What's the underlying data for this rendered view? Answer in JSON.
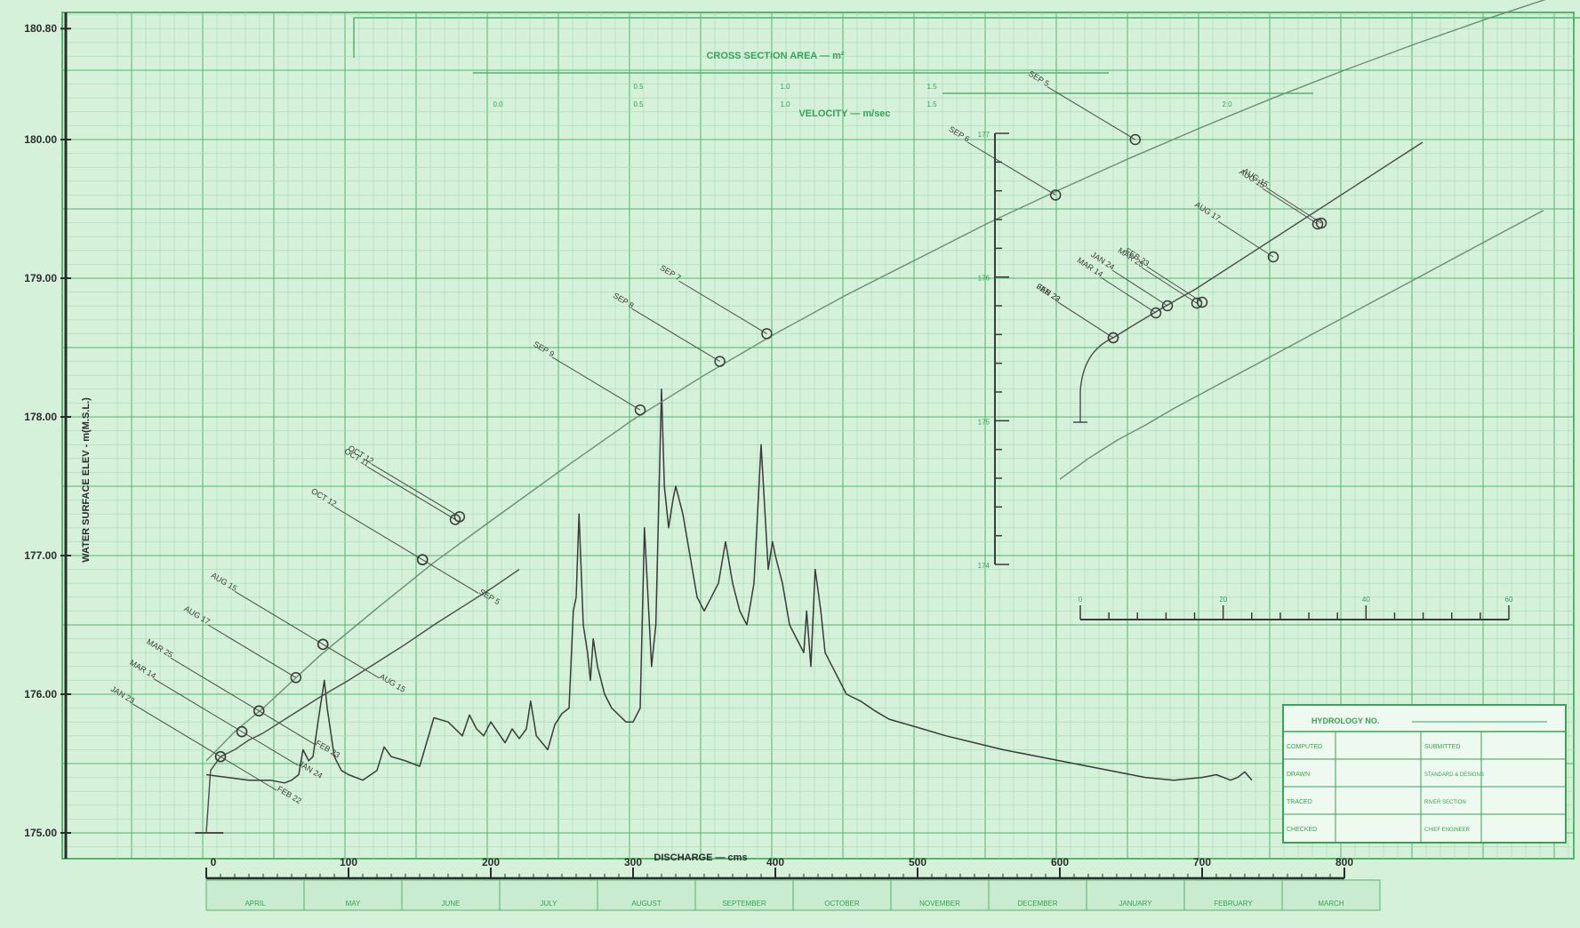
{
  "chart_data": {
    "type": "line",
    "ylabel": "WATER SURFACE ELEV - m(M.S.L.)",
    "xlabel": "DISCHARGE — cms",
    "top_axis_labels": {
      "area": "CROSS SECTION AREA — m²",
      "velocity": "VELOCITY — m/sec"
    },
    "ylim": [
      175.0,
      180.8
    ],
    "xlim": [
      0,
      800
    ],
    "y_ticks": [
      "175.00",
      "176.00",
      "177.00",
      "178.00",
      "179.00",
      "180.00",
      "180.80"
    ],
    "x_ticks": [
      "0",
      "100",
      "200",
      "300",
      "400",
      "500",
      "600",
      "700",
      "800"
    ],
    "months": [
      "APRIL",
      "MAY",
      "JUNE",
      "JULY",
      "AUGUST",
      "SEPTEMBER",
      "OCTOBER",
      "NOVEMBER",
      "DECEMBER",
      "JANUARY",
      "FEBRUARY",
      "MARCH"
    ],
    "series": [
      {
        "role": "hydrograph",
        "x": [
          0,
          15,
          30,
          45,
          55,
          60,
          65,
          68,
          72,
          75,
          80,
          83,
          85,
          90,
          95,
          100,
          110,
          120,
          125,
          130,
          140,
          145,
          150,
          160,
          170,
          175,
          180,
          185,
          190,
          195,
          200,
          210,
          215,
          220,
          225,
          228,
          232,
          240,
          245,
          250,
          255,
          258,
          260,
          262,
          265,
          268,
          270,
          272,
          275,
          280,
          285,
          290,
          295,
          300,
          305,
          308,
          310,
          313,
          316,
          320,
          322,
          325,
          328,
          330,
          335,
          340,
          345,
          350,
          355,
          360,
          365,
          370,
          375,
          380,
          385,
          390,
          395,
          398,
          400,
          405,
          410,
          415,
          420,
          422,
          425,
          428,
          432,
          435,
          440,
          450,
          460,
          470,
          480,
          500,
          520,
          540,
          560,
          580,
          600,
          620,
          640,
          660,
          680,
          700,
          710,
          720,
          725,
          730,
          735
        ],
        "y": [
          175.42,
          175.4,
          175.38,
          175.38,
          175.36,
          175.38,
          175.42,
          175.6,
          175.52,
          175.55,
          175.9,
          176.1,
          175.9,
          175.55,
          175.45,
          175.42,
          175.38,
          175.45,
          175.62,
          175.55,
          175.52,
          175.5,
          175.48,
          175.83,
          175.8,
          175.75,
          175.7,
          175.85,
          175.75,
          175.7,
          175.8,
          175.65,
          175.75,
          175.68,
          175.75,
          175.95,
          175.7,
          175.6,
          175.78,
          175.86,
          175.9,
          176.6,
          176.7,
          177.3,
          176.5,
          176.3,
          176.1,
          176.4,
          176.2,
          176.0,
          175.9,
          175.85,
          175.8,
          175.8,
          175.9,
          177.2,
          176.8,
          176.2,
          176.5,
          178.2,
          177.5,
          177.2,
          177.4,
          177.5,
          177.3,
          177.0,
          176.7,
          176.6,
          176.7,
          176.8,
          177.1,
          176.8,
          176.6,
          176.5,
          176.8,
          177.8,
          176.9,
          177.1,
          177.0,
          176.8,
          176.5,
          176.4,
          176.3,
          176.6,
          176.2,
          176.9,
          176.6,
          176.3,
          176.2,
          176.0,
          175.95,
          175.88,
          175.82,
          175.76,
          175.7,
          175.65,
          175.6,
          175.56,
          175.52,
          175.48,
          175.44,
          175.4,
          175.38,
          175.4,
          175.42,
          175.38,
          175.4,
          175.44,
          175.38
        ]
      },
      {
        "role": "rating-curve",
        "x": [
          0,
          20,
          40,
          80,
          120,
          160,
          200,
          250,
          300,
          350,
          400,
          450,
          500,
          550,
          600,
          650,
          700,
          750,
          800,
          850,
          900,
          950,
          1000,
          1040
        ],
        "y": [
          175.52,
          175.73,
          175.9,
          176.28,
          176.62,
          176.95,
          177.25,
          177.62,
          177.98,
          178.3,
          178.6,
          178.88,
          179.14,
          179.4,
          179.64,
          179.87,
          180.09,
          180.3,
          180.5,
          180.69,
          180.87,
          181.04,
          181.2,
          181.32
        ]
      },
      {
        "role": "area-curve",
        "x": [
          0,
          3,
          10,
          20,
          30,
          40,
          60,
          80,
          100,
          120,
          140,
          160,
          180,
          200,
          220
        ],
        "y": [
          175.0,
          175.45,
          175.55,
          175.6,
          175.67,
          175.72,
          175.85,
          175.98,
          176.1,
          176.23,
          176.36,
          176.5,
          176.63,
          176.76,
          176.9
        ]
      },
      {
        "role": "velocity-curve",
        "x": [
          600,
          620,
          640,
          660,
          680,
          700,
          720,
          740,
          760,
          780,
          800,
          820,
          840,
          860,
          880,
          900,
          920,
          940
        ],
        "y": [
          177.55,
          177.7,
          177.83,
          177.94,
          178.06,
          178.17,
          178.28,
          178.39,
          178.5,
          178.61,
          178.72,
          178.83,
          178.94,
          179.05,
          179.16,
          179.27,
          179.38,
          179.49
        ]
      }
    ],
    "measurements": [
      {
        "label": "JAN 23",
        "side": "upper",
        "x": 10,
        "y": 175.55
      },
      {
        "label": "FEB 22",
        "side": "lower",
        "x": 10,
        "y": 175.55
      },
      {
        "label": "MAR 14",
        "side": "upper",
        "x": 25,
        "y": 175.73
      },
      {
        "label": "JAN 24",
        "side": "lower",
        "x": 25,
        "y": 175.73
      },
      {
        "label": "MAR 25",
        "side": "upper",
        "x": 37,
        "y": 175.88
      },
      {
        "label": "FEB 23",
        "side": "lower",
        "x": 37,
        "y": 175.88
      },
      {
        "label": "AUG 17",
        "side": "upper",
        "x": 63,
        "y": 176.12
      },
      {
        "label": "AUG 15",
        "side": "upper",
        "x": 82,
        "y": 176.36
      },
      {
        "label": "AUG 15",
        "side": "lower",
        "x": 82,
        "y": 176.36
      },
      {
        "label": "OCT 12",
        "side": "upper",
        "x": 152,
        "y": 176.97
      },
      {
        "label": "SEP 5",
        "side": "lower",
        "x": 152,
        "y": 176.97
      },
      {
        "label": "OCT 11",
        "side": "upper",
        "x": 175,
        "y": 177.26
      },
      {
        "label": "OCT 12",
        "side": "upper",
        "x": 178,
        "y": 177.28
      },
      {
        "label": "SEP 9",
        "side": "upper",
        "x": 305,
        "y": 178.05
      },
      {
        "label": "SEP 8",
        "side": "upper",
        "x": 361,
        "y": 178.4
      },
      {
        "label": "SEP 7",
        "side": "upper",
        "x": 394,
        "y": 178.6
      },
      {
        "label": "SEP 6",
        "side": "upper",
        "x": 597,
        "y": 179.6
      },
      {
        "label": "SEP 5",
        "side": "upper",
        "x": 653,
        "y": 180.0
      }
    ],
    "inset_measurements": [
      {
        "label": "JAN 23",
        "x": 0.0,
        "y": 0.0
      },
      {
        "label": "FEB 22",
        "x": 0.0,
        "y": 0.0
      },
      {
        "label": "MAR 14",
        "x": 0.2,
        "y": 0.0
      },
      {
        "label": "JAN 24",
        "x": 0.3,
        "y": 0.0
      },
      {
        "label": "MAR 25",
        "x": 0.3,
        "y": 0.0
      },
      {
        "label": "FEB 23",
        "x": 0.3,
        "y": 0.0
      },
      {
        "label": "AUG 17",
        "x": 0.8,
        "y": 0.0
      },
      {
        "label": "AUG 15",
        "x": 0.9,
        "y": 0.0
      },
      {
        "label": "AUG 15",
        "x": 0.9,
        "y": 0.0
      }
    ],
    "inset": {
      "y_ticks": [
        "177",
        "176",
        "175",
        "174"
      ],
      "x_ticks": [
        "0",
        "20",
        "40",
        "60"
      ]
    },
    "top_ticks_area": [
      "0.5",
      "1.0",
      "1.5"
    ],
    "top_ticks_velocity": [
      "0.0",
      "0.5",
      "1.0",
      "1.5",
      "2.0"
    ]
  },
  "title_block": {
    "heading": "HYDROLOGY NO.",
    "left_labels": [
      "COMPUTED",
      "DRAWN",
      "TRACED",
      "CHECKED"
    ],
    "right_labels": [
      "SUBMITTED",
      "STANDARD & DESIGNS",
      "RIVER SECTION",
      "CHIEF ENGINEER"
    ]
  },
  "colors": {
    "paper": "#d6f1da",
    "grid_major": "#4fb66a",
    "grid_minor": "#a7dbb2",
    "ink": "#3a3a3a",
    "print": "#34a455"
  }
}
